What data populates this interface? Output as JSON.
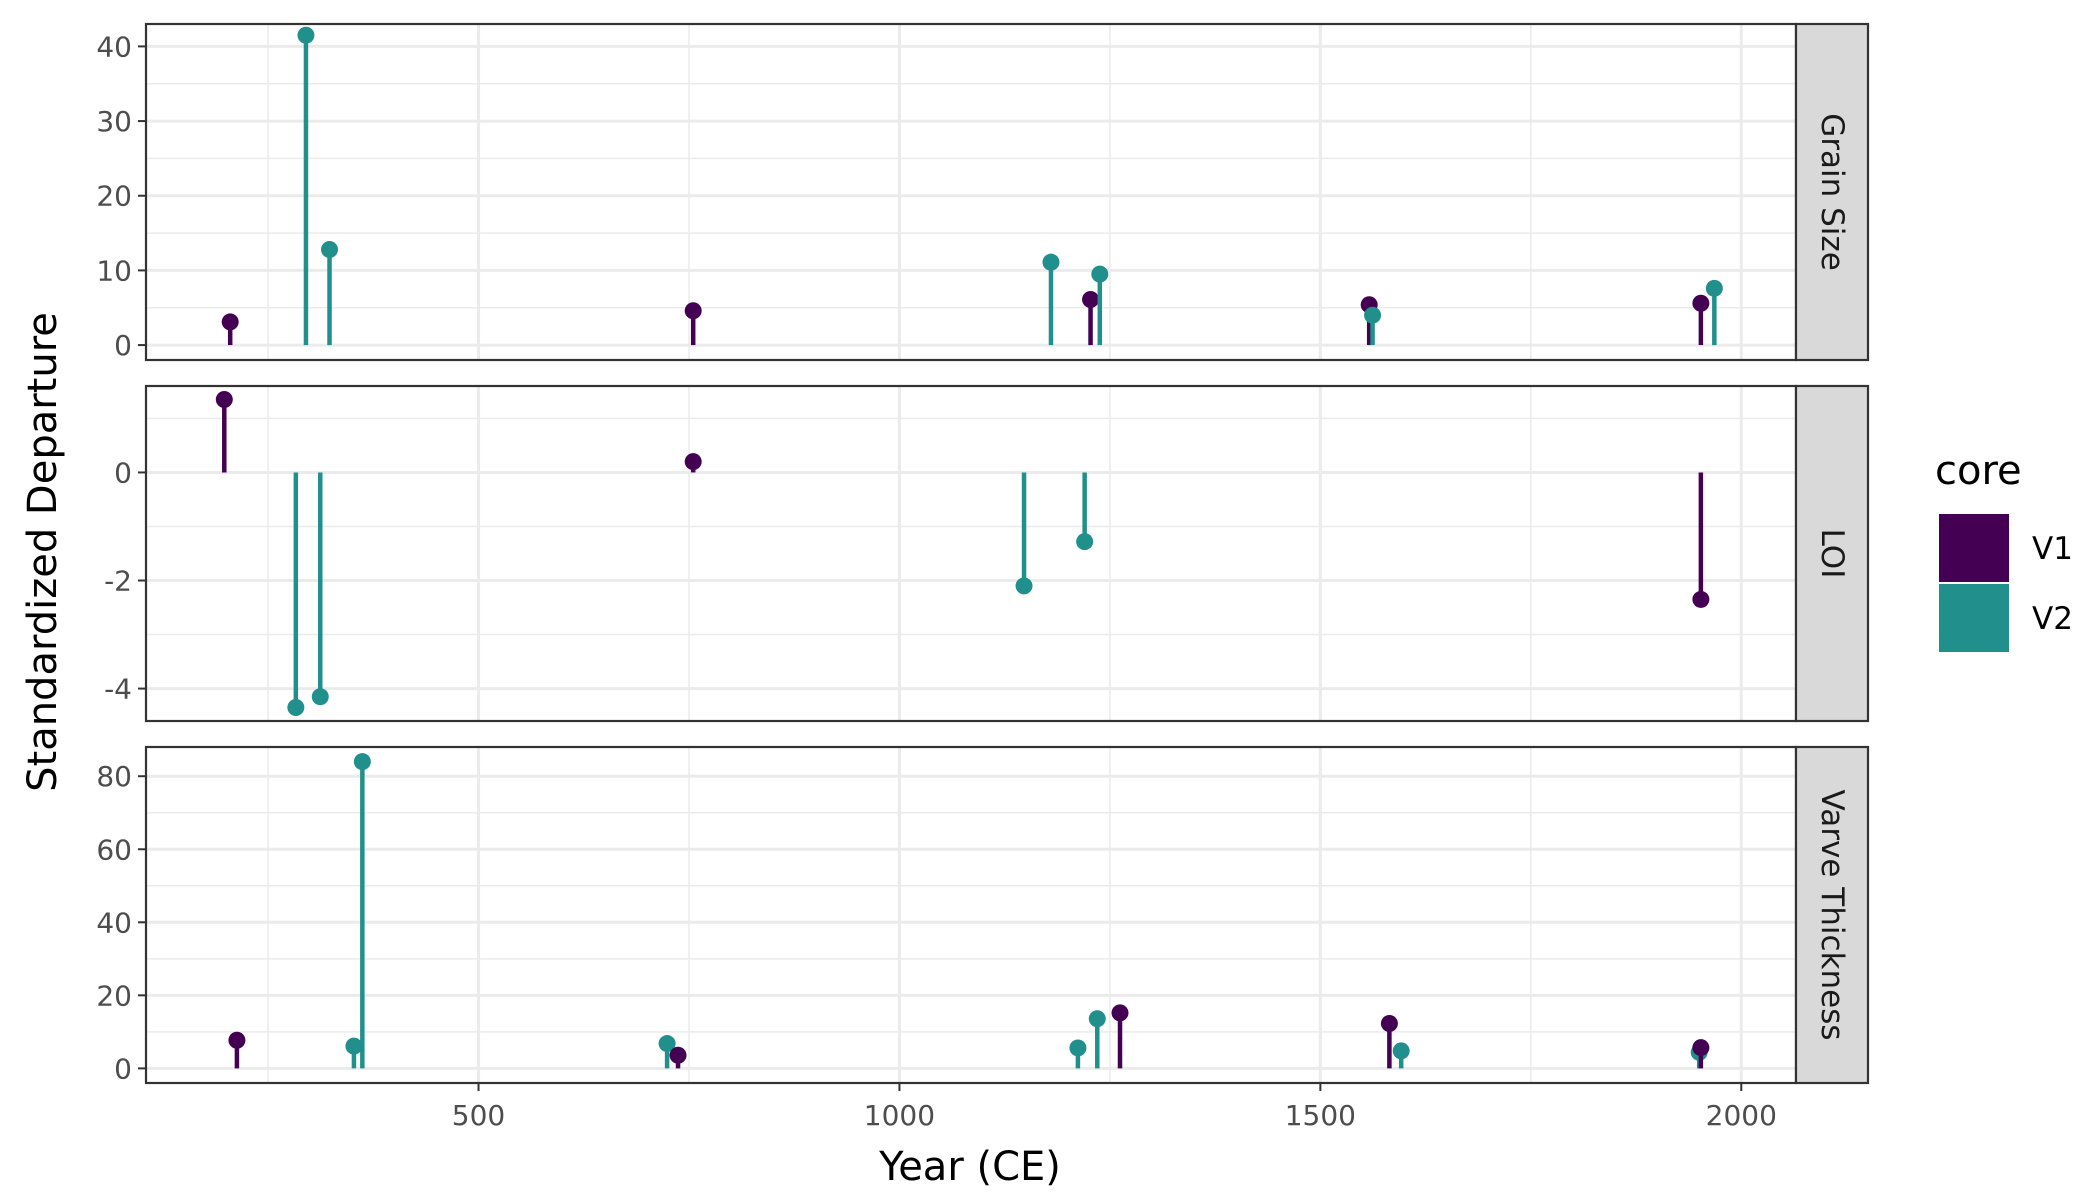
{
  "chart_data": {
    "type": "lollipop",
    "xlabel": "Year (CE)",
    "ylabel": "Standardized Departure",
    "x_ticks": [
      500,
      1000,
      1500,
      2000
    ],
    "xlim": [
      105,
      2065
    ],
    "legend": {
      "title": "core",
      "position": "right"
    },
    "series_styles": [
      {
        "name": "V1",
        "color": "#440154"
      },
      {
        "name": "V2",
        "color": "#21908C"
      }
    ],
    "panels": [
      {
        "strip": "Grain Size",
        "ylim": [
          -2,
          43
        ],
        "y_ticks": [
          0,
          10,
          20,
          30,
          40
        ],
        "points": [
          {
            "core": "V1",
            "year": 205,
            "value": 3.1
          },
          {
            "core": "V2",
            "year": 295,
            "value": 41.5
          },
          {
            "core": "V2",
            "year": 323,
            "value": 12.8
          },
          {
            "core": "V1",
            "year": 755,
            "value": 4.6
          },
          {
            "core": "V2",
            "year": 1180,
            "value": 11.1
          },
          {
            "core": "V1",
            "year": 1227,
            "value": 6.1
          },
          {
            "core": "V2",
            "year": 1238,
            "value": 9.5
          },
          {
            "core": "V1",
            "year": 1558,
            "value": 5.4
          },
          {
            "core": "V2",
            "year": 1562,
            "value": 4.0
          },
          {
            "core": "V1",
            "year": 1952,
            "value": 5.6
          },
          {
            "core": "V2",
            "year": 1968,
            "value": 7.6
          }
        ]
      },
      {
        "strip": "LOI",
        "ylim": [
          -4.6,
          1.6
        ],
        "y_ticks": [
          -4,
          -2,
          0
        ],
        "points": [
          {
            "core": "V1",
            "year": 198,
            "value": 1.35
          },
          {
            "core": "V2",
            "year": 283,
            "value": -4.35
          },
          {
            "core": "V2",
            "year": 312,
            "value": -4.15
          },
          {
            "core": "V1",
            "year": 755,
            "value": 0.2
          },
          {
            "core": "V2",
            "year": 1148,
            "value": -2.1
          },
          {
            "core": "V2",
            "year": 1220,
            "value": -1.28
          },
          {
            "core": "V1",
            "year": 1952,
            "value": -2.35
          }
        ]
      },
      {
        "strip": "Varve Thickness",
        "ylim": [
          -4,
          88
        ],
        "y_ticks": [
          0,
          20,
          40,
          60,
          80
        ],
        "points": [
          {
            "core": "V1",
            "year": 213,
            "value": 7.7
          },
          {
            "core": "V2",
            "year": 352,
            "value": 6.1
          },
          {
            "core": "V2",
            "year": 362,
            "value": 84.0
          },
          {
            "core": "V2",
            "year": 724,
            "value": 6.8
          },
          {
            "core": "V1",
            "year": 737,
            "value": 3.6
          },
          {
            "core": "V2",
            "year": 1212,
            "value": 5.6
          },
          {
            "core": "V2",
            "year": 1235,
            "value": 13.6
          },
          {
            "core": "V1",
            "year": 1262,
            "value": 15.2
          },
          {
            "core": "V1",
            "year": 1582,
            "value": 12.3
          },
          {
            "core": "V2",
            "year": 1596,
            "value": 4.8
          },
          {
            "core": "V2",
            "year": 1950,
            "value": 4.4
          },
          {
            "core": "V1",
            "year": 1952,
            "value": 5.7
          }
        ]
      }
    ]
  }
}
